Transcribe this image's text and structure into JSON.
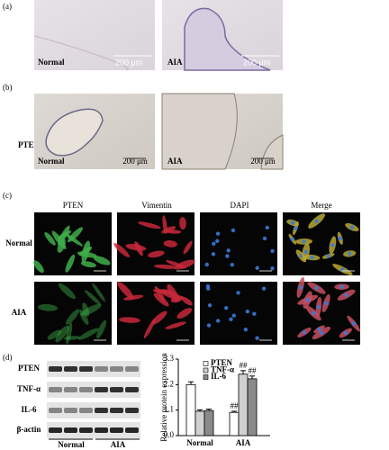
{
  "panels": {
    "a": {
      "label": "(a)",
      "images": [
        {
          "label": "Normal",
          "scale": "200 μm"
        },
        {
          "label": "AIA",
          "scale": "200 μm"
        }
      ]
    },
    "b": {
      "label": "(b)",
      "row_label": "PTEN",
      "images": [
        {
          "label": "Normal",
          "scale": "200 μm"
        },
        {
          "label": "AIA",
          "scale": "200 μm"
        }
      ]
    },
    "c": {
      "label": "(c)",
      "columns": [
        "PTEN",
        "Vimentin",
        "DAPI",
        "Merge"
      ],
      "rows": [
        "Normal",
        "AIA"
      ]
    },
    "d": {
      "label": "(d)",
      "blot_rows": [
        "PTEN",
        "TNF-α",
        "IL-6",
        "β-actin"
      ],
      "groups": [
        "Normal",
        "AIA"
      ]
    }
  },
  "chart_data": {
    "type": "bar",
    "ylabel": "Relative protein expression",
    "categories": [
      "Normal",
      "AIA"
    ],
    "series": [
      {
        "name": "PTEN",
        "color": "#ffffff",
        "values": [
          2.2,
          1.0
        ],
        "errors": [
          0.12,
          0.05
        ],
        "annotations": [
          null,
          "##"
        ]
      },
      {
        "name": "TNF-α",
        "color": "#d0d0d0",
        "values": [
          1.05,
          2.65
        ],
        "errors": [
          0.06,
          0.15
        ],
        "annotations": [
          null,
          "##"
        ]
      },
      {
        "name": "IL-6",
        "color": "#8a8a8a",
        "values": [
          1.08,
          2.45
        ],
        "errors": [
          0.06,
          0.12
        ],
        "annotations": [
          null,
          "##"
        ]
      }
    ],
    "ylim": [
      0,
      3.3
    ],
    "yticks": [
      {
        "value": 0,
        "label": "0.0"
      },
      1.1,
      2.2,
      3.3
    ]
  }
}
